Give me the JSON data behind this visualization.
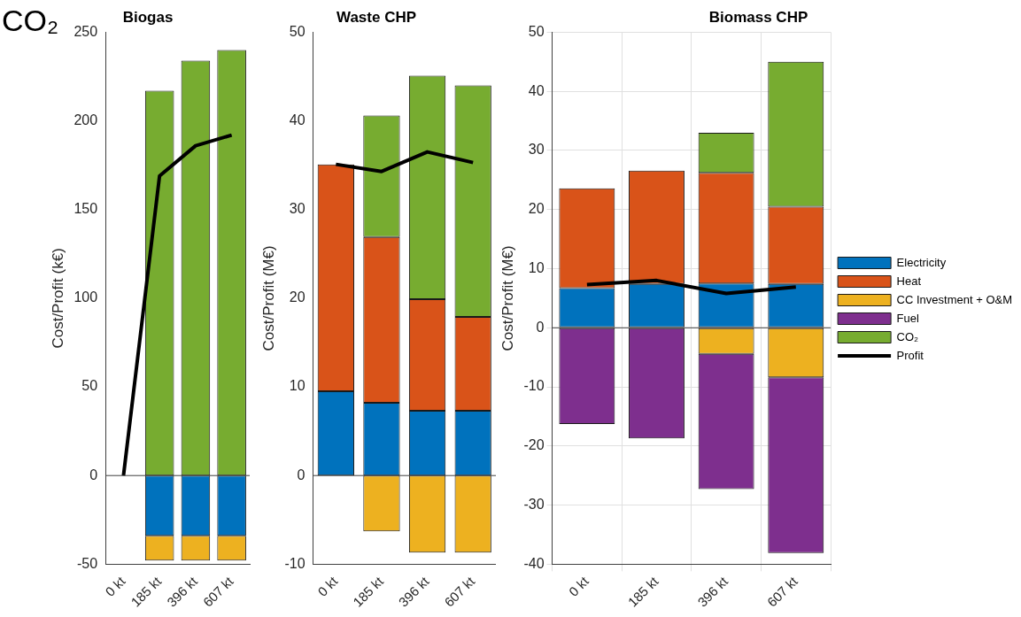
{
  "chart_data": [
    {
      "type": "bar",
      "title": "Biogas",
      "ylabel": "Cost/Profit (k€)",
      "categories": [
        "0 kt",
        "185 kt",
        "396 kt",
        "607 kt"
      ],
      "stacked": true,
      "ylim": [
        -50,
        250
      ],
      "yticks": [
        -50,
        0,
        50,
        100,
        150,
        200,
        250
      ],
      "grid": false,
      "legend": false,
      "annotations": [
        "CO₂"
      ],
      "ref_lines": [
        {
          "axis": "y",
          "value": 0,
          "color": "#404040"
        }
      ],
      "series": [
        {
          "color": "#0072bd",
          "values": [
            null,
            -34,
            -34,
            -34
          ]
        },
        {
          "color": "#edb120",
          "values": [
            null,
            -14,
            -14,
            -14
          ]
        },
        {
          "color": "#77ac30",
          "values": [
            null,
            217,
            234,
            240
          ]
        },
        {
          "type": "line",
          "color": "#000000",
          "values": [
            0,
            169,
            186,
            192
          ]
        }
      ]
    },
    {
      "type": "bar",
      "title": "Waste CHP",
      "ylabel": "Cost/Profit (M€)",
      "categories": [
        "0 kt",
        "185 kt",
        "396 kt",
        "607 kt"
      ],
      "stacked": true,
      "ylim": [
        -10,
        50
      ],
      "yticks": [
        -10,
        0,
        10,
        20,
        30,
        40,
        50
      ],
      "grid": false,
      "legend": false,
      "ref_lines": [
        {
          "axis": "y",
          "value": 0,
          "color": "#404040"
        }
      ],
      "series": [
        {
          "color": "#0072bd",
          "values": [
            9.5,
            8.2,
            7.3,
            7.3
          ]
        },
        {
          "color": "#d95319",
          "values": [
            25.6,
            18.7,
            12.6,
            10.6
          ]
        },
        {
          "color": "#edb120",
          "values": [
            null,
            -6.3,
            -8.7,
            -8.7
          ]
        },
        {
          "color": "#77ac30",
          "values": [
            null,
            13.7,
            25.2,
            26.1
          ]
        },
        {
          "type": "line",
          "color": "#000000",
          "values": [
            35.1,
            34.3,
            36.5,
            35.3
          ]
        }
      ]
    },
    {
      "type": "bar",
      "title": "Biomass CHP",
      "ylabel": "Cost/Profit (M€)",
      "categories": [
        "0 kt",
        "185 kt",
        "396 kt",
        "607 kt"
      ],
      "stacked": true,
      "ylim": [
        -40,
        50
      ],
      "yticks": [
        -40,
        -30,
        -20,
        -10,
        0,
        10,
        20,
        30,
        40,
        50
      ],
      "grid": true,
      "legend": "right",
      "ref_lines": [
        {
          "axis": "y",
          "value": 0,
          "color": "#404040"
        }
      ],
      "series": [
        {
          "name": "Electricity",
          "color": "#0072bd",
          "values": [
            6.7,
            7.4,
            7.5,
            7.4
          ]
        },
        {
          "name": "Heat",
          "color": "#d95319",
          "values": [
            16.9,
            19.2,
            18.7,
            13.1
          ]
        },
        {
          "name": "CC Investment + O&M",
          "color": "#edb120",
          "values": [
            null,
            null,
            -4.4,
            -8.4
          ]
        },
        {
          "name": "Fuel",
          "color": "#7e2f8e",
          "values": [
            -16.3,
            -18.7,
            -22.9,
            -29.7
          ]
        },
        {
          "name": "CO₂",
          "color": "#77ac30",
          "values": [
            null,
            null,
            6.8,
            24.5
          ]
        },
        {
          "name": "Profit",
          "type": "line",
          "color": "#000000",
          "values": [
            7.3,
            8.0,
            5.8,
            6.9
          ]
        }
      ]
    }
  ]
}
